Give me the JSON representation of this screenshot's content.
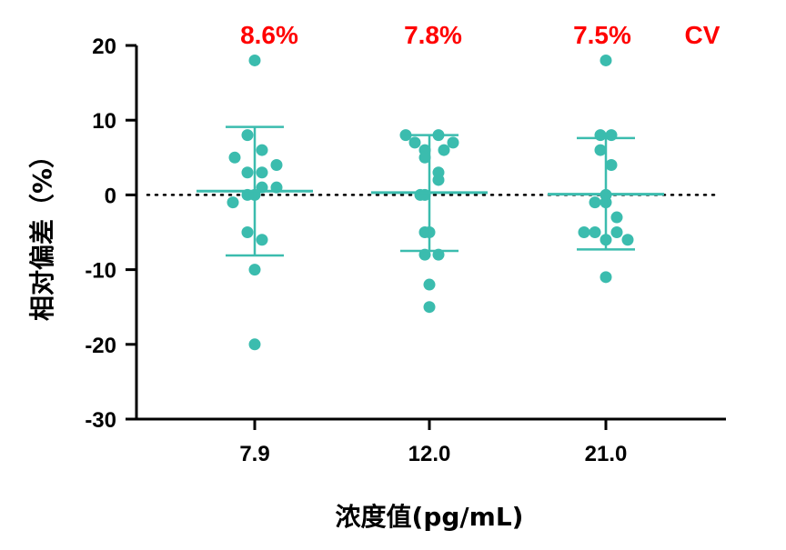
{
  "chart_data": {
    "type": "scatter",
    "title": "",
    "xlabel": "浓度值(pg/mL)",
    "ylabel": "相对偏差（%）",
    "ylim": [
      -30,
      20
    ],
    "yticks": [
      20,
      10,
      0,
      -10,
      -20,
      -30
    ],
    "ytick_labels": [
      "20",
      "10",
      "0",
      "-10",
      "-20",
      "-30"
    ],
    "categories": [
      "7.9",
      "12.0",
      "21.0"
    ],
    "point_color": "#3bbcae",
    "label_color": "#ff0000",
    "reference_line": {
      "y": 0,
      "style": "dotted"
    },
    "cv_labels": [
      "8.6%",
      "7.8%",
      "7.5%"
    ],
    "cv_legend": "CV",
    "groups": [
      {
        "category": "7.9",
        "mean": 0.5,
        "sd_upper": 9.1,
        "sd_lower": -8.1,
        "points": [
          {
            "offset": 0,
            "y": 18
          },
          {
            "offset": -1.1,
            "y": 5
          },
          {
            "offset": -0.4,
            "y": 8
          },
          {
            "offset": 0.4,
            "y": 6
          },
          {
            "offset": 1.2,
            "y": 4
          },
          {
            "offset": -0.4,
            "y": 3
          },
          {
            "offset": 0.4,
            "y": 3
          },
          {
            "offset": 0.4,
            "y": 1
          },
          {
            "offset": 1.2,
            "y": 1
          },
          {
            "offset": -0.4,
            "y": 0
          },
          {
            "offset": 0,
            "y": 0
          },
          {
            "offset": -1.2,
            "y": -1
          },
          {
            "offset": -0.4,
            "y": -5
          },
          {
            "offset": 0.4,
            "y": -6
          },
          {
            "offset": 0,
            "y": -10
          },
          {
            "offset": 0,
            "y": -20
          }
        ]
      },
      {
        "category": "12.0",
        "mean": 0.3,
        "sd_upper": 8.0,
        "sd_lower": -7.5,
        "points": [
          {
            "offset": -1.3,
            "y": 8
          },
          {
            "offset": 0.5,
            "y": 8
          },
          {
            "offset": -0.8,
            "y": 7
          },
          {
            "offset": 1.3,
            "y": 7
          },
          {
            "offset": -0.25,
            "y": 6
          },
          {
            "offset": 0.8,
            "y": 6
          },
          {
            "offset": -0.25,
            "y": 5
          },
          {
            "offset": 0.5,
            "y": 3
          },
          {
            "offset": 0.5,
            "y": 2
          },
          {
            "offset": -0.25,
            "y": 0
          },
          {
            "offset": -0.5,
            "y": 0
          },
          {
            "offset": 0,
            "y": -5
          },
          {
            "offset": -0.25,
            "y": -5
          },
          {
            "offset": -0.25,
            "y": -8
          },
          {
            "offset": 0.5,
            "y": -8
          },
          {
            "offset": 0,
            "y": -12
          },
          {
            "offset": 0,
            "y": -15
          }
        ]
      },
      {
        "category": "21.0",
        "mean": 0.1,
        "sd_upper": 7.6,
        "sd_lower": -7.3,
        "points": [
          {
            "offset": 0,
            "y": 18
          },
          {
            "offset": -0.3,
            "y": 8
          },
          {
            "offset": 0.3,
            "y": 8
          },
          {
            "offset": -0.3,
            "y": 6
          },
          {
            "offset": 0.3,
            "y": 4
          },
          {
            "offset": 0,
            "y": 0
          },
          {
            "offset": -0.6,
            "y": -1
          },
          {
            "offset": 0,
            "y": -1
          },
          {
            "offset": 0.6,
            "y": -3
          },
          {
            "offset": -1.2,
            "y": -5
          },
          {
            "offset": -0.6,
            "y": -5
          },
          {
            "offset": 0.6,
            "y": -5
          },
          {
            "offset": 0,
            "y": -6
          },
          {
            "offset": 1.2,
            "y": -6
          },
          {
            "offset": 0,
            "y": -11
          }
        ]
      }
    ]
  }
}
